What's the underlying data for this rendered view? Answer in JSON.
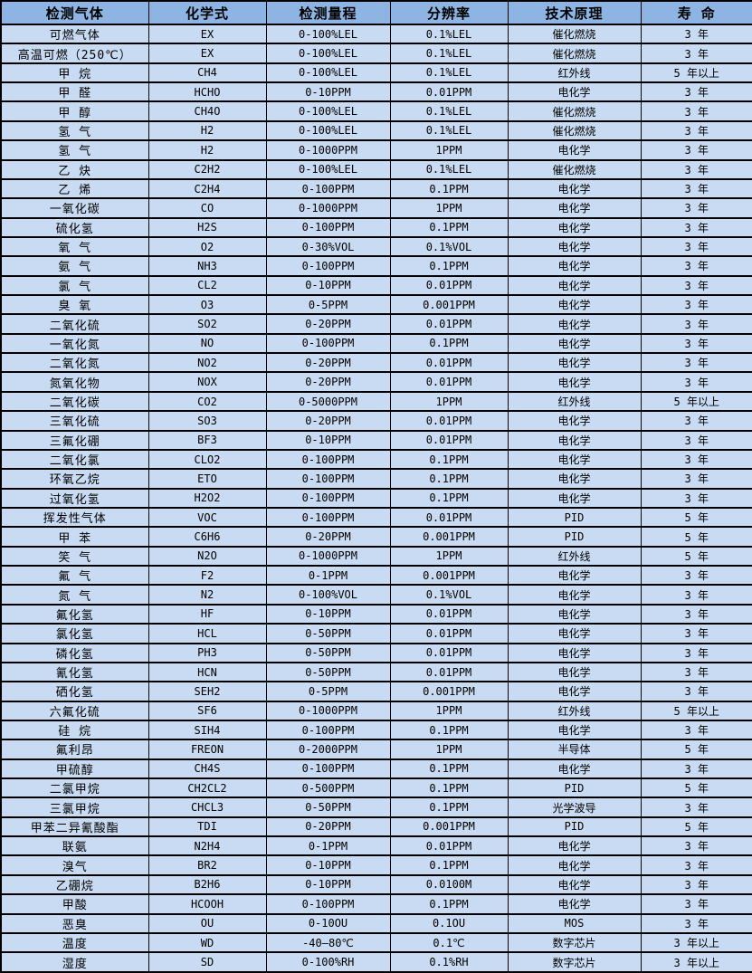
{
  "table": {
    "colors": {
      "header_bg": "#8db4e2",
      "row_bg": "#c9dbf2",
      "border_color": "#000000",
      "text_color": "#000000"
    },
    "columns": [
      "检测气体",
      "化学式",
      "检测量程",
      "分辨率",
      "技术原理",
      "寿 命"
    ],
    "rows": [
      [
        "可燃气体",
        "EX",
        "0-100%LEL",
        "0.1%LEL",
        "催化燃烧",
        "3 年"
      ],
      [
        "高温可燃（250℃）",
        "EX",
        "0-100%LEL",
        "0.1%LEL",
        "催化燃烧",
        "3 年"
      ],
      [
        "甲 烷",
        "CH4",
        "0-100%LEL",
        "0.1%LEL",
        "红外线",
        "5 年以上"
      ],
      [
        "甲 醛",
        "HCHO",
        "0-10PPM",
        "0.01PPM",
        "电化学",
        "3 年"
      ],
      [
        "甲 醇",
        "CH4O",
        "0-100%LEL",
        "0.1%LEL",
        "催化燃烧",
        "3 年"
      ],
      [
        "氢 气",
        "H2",
        "0-100%LEL",
        "0.1%LEL",
        "催化燃烧",
        "3 年"
      ],
      [
        "氢 气",
        "H2",
        "0-1000PPM",
        "1PPM",
        "电化学",
        "3 年"
      ],
      [
        "乙 炔",
        "C2H2",
        "0-100%LEL",
        "0.1%LEL",
        "催化燃烧",
        "3 年"
      ],
      [
        "乙 烯",
        "C2H4",
        "0-100PPM",
        "0.1PPM",
        "电化学",
        "3 年"
      ],
      [
        "一氧化碳",
        "CO",
        "0-1000PPM",
        "1PPM",
        "电化学",
        "3 年"
      ],
      [
        "硫化氢",
        "H2S",
        "0-100PPM",
        "0.1PPM",
        "电化学",
        "3 年"
      ],
      [
        "氧 气",
        "O2",
        "0-30%VOL",
        "0.1%VOL",
        "电化学",
        "3 年"
      ],
      [
        "氨 气",
        "NH3",
        "0-100PPM",
        "0.1PPM",
        "电化学",
        "3 年"
      ],
      [
        "氯 气",
        "CL2",
        "0-10PPM",
        "0.01PPM",
        "电化学",
        "3 年"
      ],
      [
        "臭 氧",
        "O3",
        "0-5PPM",
        "0.001PPM",
        "电化学",
        "3 年"
      ],
      [
        "二氧化硫",
        "SO2",
        "0-20PPM",
        "0.01PPM",
        "电化学",
        "3 年"
      ],
      [
        "一氧化氮",
        "NO",
        "0-100PPM",
        "0.1PPM",
        "电化学",
        "3 年"
      ],
      [
        "二氧化氮",
        "NO2",
        "0-20PPM",
        "0.01PPM",
        "电化学",
        "3 年"
      ],
      [
        "氮氧化物",
        "NOX",
        "0-20PPM",
        "0.01PPM",
        "电化学",
        "3 年"
      ],
      [
        "二氧化碳",
        "CO2",
        "0-5000PPM",
        "1PPM",
        "红外线",
        "5 年以上"
      ],
      [
        "三氧化硫",
        "SO3",
        "0-20PPM",
        "0.01PPM",
        "电化学",
        "3 年"
      ],
      [
        "三氟化硼",
        "BF3",
        "0-10PPM",
        "0.01PPM",
        "电化学",
        "3 年"
      ],
      [
        "二氧化氯",
        "CLO2",
        "0-100PPM",
        "0.1PPM",
        "电化学",
        "3 年"
      ],
      [
        "环氧乙烷",
        "ETO",
        "0-100PPM",
        "0.1PPM",
        "电化学",
        "3 年"
      ],
      [
        "过氧化氢",
        "H2O2",
        "0-100PPM",
        "0.1PPM",
        "电化学",
        "3 年"
      ],
      [
        "挥发性气体",
        "VOC",
        "0-100PPM",
        "0.01PPM",
        "PID",
        "5 年"
      ],
      [
        "甲 苯",
        "C6H6",
        "0-20PPM",
        "0.001PPM",
        "PID",
        "5 年"
      ],
      [
        "笑 气",
        "N2O",
        "0-1000PPM",
        "1PPM",
        "红外线",
        "5 年"
      ],
      [
        "氟 气",
        "F2",
        "0-1PPM",
        "0.001PPM",
        "电化学",
        "3 年"
      ],
      [
        "氮 气",
        "N2",
        "0-100%VOL",
        "0.1%VOL",
        "电化学",
        "3 年"
      ],
      [
        "氟化氢",
        "HF",
        "0-10PPM",
        "0.01PPM",
        "电化学",
        "3 年"
      ],
      [
        "氯化氢",
        "HCL",
        "0-50PPM",
        "0.01PPM",
        "电化学",
        "3 年"
      ],
      [
        "磷化氢",
        "PH3",
        "0-50PPM",
        "0.01PPM",
        "电化学",
        "3 年"
      ],
      [
        "氰化氢",
        "HCN",
        "0-50PPM",
        "0.01PPM",
        "电化学",
        "3 年"
      ],
      [
        "硒化氢",
        "SEH2",
        "0-5PPM",
        "0.001PPM",
        "电化学",
        "3 年"
      ],
      [
        "六氟化硫",
        "SF6",
        "0-1000PPM",
        "1PPM",
        "红外线",
        "5 年以上"
      ],
      [
        "硅 烷",
        "SIH4",
        "0-100PPM",
        "0.1PPM",
        "电化学",
        "3 年"
      ],
      [
        "氟利昂",
        "FREON",
        "0-2000PPM",
        "1PPM",
        "半导体",
        "5 年"
      ],
      [
        "甲硫醇",
        "CH4S",
        "0-100PPM",
        "0.1PPM",
        "电化学",
        "3 年"
      ],
      [
        "二氯甲烷",
        "CH2CL2",
        "0-500PPM",
        "0.1PPM",
        "PID",
        "5 年"
      ],
      [
        "三氯甲烷",
        "CHCL3",
        "0-50PPM",
        "0.1PPM",
        "光学波导",
        "3 年"
      ],
      [
        "甲苯二异氰酸酯",
        "TDI",
        "0-20PPM",
        "0.001PPM",
        "PID",
        "5 年"
      ],
      [
        "联氨",
        "N2H4",
        "0-1PPM",
        "0.01PPM",
        "电化学",
        "3 年"
      ],
      [
        "溴气",
        "BR2",
        "0-10PPM",
        "0.1PPM",
        "电化学",
        "3 年"
      ],
      [
        "乙硼烷",
        "B2H6",
        "0-10PPM",
        "0.0100M",
        "电化学",
        "3 年"
      ],
      [
        "甲酸",
        "HCOOH",
        "0-100PPM",
        "0.1PPM",
        "电化学",
        "3 年"
      ],
      [
        "恶臭",
        "OU",
        "0-10OU",
        "0.1OU",
        "MOS",
        "3 年"
      ],
      [
        "温度",
        "WD",
        "-40—80℃",
        "0.1℃",
        "数字芯片",
        "3 年以上"
      ],
      [
        "湿度",
        "SD",
        "0-100%RH",
        "0.1%RH",
        "数字芯片",
        "3 年以上"
      ]
    ],
    "cell_names": [
      "gas-name",
      "chemical-formula",
      "detection-range",
      "resolution",
      "technology",
      "lifespan"
    ]
  }
}
